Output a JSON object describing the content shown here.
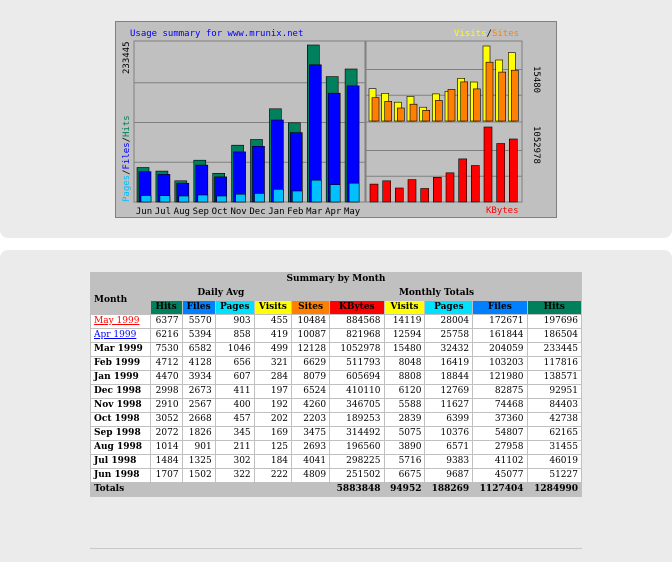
{
  "graph": {
    "title": "Usage summary for www.mrunix.net",
    "legend_right": {
      "visits": "Visits",
      "slash": "/",
      "sites": "Sites"
    },
    "legend_left": {
      "pages": "Pages",
      "slash1": "/",
      "files": "Files",
      "slash2": "/",
      "hits": "Hits"
    },
    "kbytes_label": "KBytes",
    "max_hits_label": "233445",
    "max_visits_label": "15480",
    "max_kbytes_label": "1052978",
    "months": [
      "Jun",
      "Jul",
      "Aug",
      "Sep",
      "Oct",
      "Nov",
      "Dec",
      "Jan",
      "Feb",
      "Mar",
      "Apr",
      "May"
    ],
    "colors": {
      "hits": "#00805c",
      "files": "#0000ff",
      "pages": "#00c0ff",
      "visits": "#ffff00",
      "sites": "#ff8000",
      "kbytes": "#ff0000"
    }
  },
  "chart_data": {
    "type": "bar",
    "categories": [
      "Jun",
      "Jul",
      "Aug",
      "Sep",
      "Oct",
      "Nov",
      "Dec",
      "Jan",
      "Feb",
      "Mar",
      "Apr",
      "May"
    ],
    "series": [
      {
        "name": "Hits",
        "values": [
          51227,
          46019,
          31455,
          62165,
          42738,
          84403,
          92951,
          138571,
          117816,
          233445,
          186504,
          197696
        ]
      },
      {
        "name": "Files",
        "values": [
          45077,
          41102,
          27958,
          54807,
          37360,
          74468,
          82875,
          121980,
          103203,
          204059,
          161844,
          172671
        ]
      },
      {
        "name": "Pages",
        "values": [
          9687,
          9383,
          6571,
          10376,
          6399,
          11627,
          12769,
          18844,
          16419,
          32432,
          25758,
          28004
        ]
      },
      {
        "name": "Visits",
        "values": [
          6675,
          5716,
          3890,
          5075,
          2839,
          5588,
          6120,
          8808,
          8048,
          15480,
          12594,
          14119
        ]
      },
      {
        "name": "Sites",
        "values": [
          4809,
          4041,
          2693,
          3475,
          2203,
          4260,
          6524,
          8079,
          6629,
          12128,
          10087,
          10484
        ]
      },
      {
        "name": "KBytes",
        "values": [
          251502,
          298225,
          196560,
          314492,
          189253,
          346705,
          410110,
          605694,
          511793,
          1052978,
          821968,
          884568
        ]
      }
    ]
  },
  "table": {
    "caption": "Summary by Month",
    "month_header": "Month",
    "daily_avg_header": "Daily Avg",
    "monthly_totals_header": "Monthly Totals",
    "columns": {
      "d_hits": "Hits",
      "d_files": "Files",
      "d_pages": "Pages",
      "d_visits": "Visits",
      "m_sites": "Sites",
      "m_kbytes": "KBytes",
      "m_visits": "Visits",
      "m_pages": "Pages",
      "m_files": "Files",
      "m_hits": "Hits"
    },
    "rows": [
      {
        "month": "May 1999",
        "link": true,
        "current": true,
        "d_hits": "6377",
        "d_files": "5570",
        "d_pages": "903",
        "d_visits": "455",
        "m_sites": "10484",
        "m_kbytes": "884568",
        "m_visits": "14119",
        "m_pages": "28004",
        "m_files": "172671",
        "m_hits": "197696"
      },
      {
        "month": "Apr 1999",
        "link": true,
        "current": false,
        "d_hits": "6216",
        "d_files": "5394",
        "d_pages": "858",
        "d_visits": "419",
        "m_sites": "10087",
        "m_kbytes": "821968",
        "m_visits": "12594",
        "m_pages": "25758",
        "m_files": "161844",
        "m_hits": "186504"
      },
      {
        "month": "Mar 1999",
        "link": false,
        "d_hits": "7530",
        "d_files": "6582",
        "d_pages": "1046",
        "d_visits": "499",
        "m_sites": "12128",
        "m_kbytes": "1052978",
        "m_visits": "15480",
        "m_pages": "32432",
        "m_files": "204059",
        "m_hits": "233445"
      },
      {
        "month": "Feb 1999",
        "link": false,
        "d_hits": "4712",
        "d_files": "4128",
        "d_pages": "656",
        "d_visits": "321",
        "m_sites": "6629",
        "m_kbytes": "511793",
        "m_visits": "8048",
        "m_pages": "16419",
        "m_files": "103203",
        "m_hits": "117816"
      },
      {
        "month": "Jan 1999",
        "link": false,
        "d_hits": "4470",
        "d_files": "3934",
        "d_pages": "607",
        "d_visits": "284",
        "m_sites": "8079",
        "m_kbytes": "605694",
        "m_visits": "8808",
        "m_pages": "18844",
        "m_files": "121980",
        "m_hits": "138571"
      },
      {
        "month": "Dec 1998",
        "link": false,
        "d_hits": "2998",
        "d_files": "2673",
        "d_pages": "411",
        "d_visits": "197",
        "m_sites": "6524",
        "m_kbytes": "410110",
        "m_visits": "6120",
        "m_pages": "12769",
        "m_files": "82875",
        "m_hits": "92951"
      },
      {
        "month": "Nov 1998",
        "link": false,
        "d_hits": "2910",
        "d_files": "2567",
        "d_pages": "400",
        "d_visits": "192",
        "m_sites": "4260",
        "m_kbytes": "346705",
        "m_visits": "5588",
        "m_pages": "11627",
        "m_files": "74468",
        "m_hits": "84403"
      },
      {
        "month": "Oct 1998",
        "link": false,
        "d_hits": "3052",
        "d_files": "2668",
        "d_pages": "457",
        "d_visits": "202",
        "m_sites": "2203",
        "m_kbytes": "189253",
        "m_visits": "2839",
        "m_pages": "6399",
        "m_files": "37360",
        "m_hits": "42738"
      },
      {
        "month": "Sep 1998",
        "link": false,
        "d_hits": "2072",
        "d_files": "1826",
        "d_pages": "345",
        "d_visits": "169",
        "m_sites": "3475",
        "m_kbytes": "314492",
        "m_visits": "5075",
        "m_pages": "10376",
        "m_files": "54807",
        "m_hits": "62165"
      },
      {
        "month": "Aug 1998",
        "link": false,
        "d_hits": "1014",
        "d_files": "901",
        "d_pages": "211",
        "d_visits": "125",
        "m_sites": "2693",
        "m_kbytes": "196560",
        "m_visits": "3890",
        "m_pages": "6571",
        "m_files": "27958",
        "m_hits": "31455"
      },
      {
        "month": "Jul 1998",
        "link": false,
        "d_hits": "1484",
        "d_files": "1325",
        "d_pages": "302",
        "d_visits": "184",
        "m_sites": "4041",
        "m_kbytes": "298225",
        "m_visits": "5716",
        "m_pages": "9383",
        "m_files": "41102",
        "m_hits": "46019"
      },
      {
        "month": "Jun 1998",
        "link": false,
        "d_hits": "1707",
        "d_files": "1502",
        "d_pages": "322",
        "d_visits": "222",
        "m_sites": "4809",
        "m_kbytes": "251502",
        "m_visits": "6675",
        "m_pages": "9687",
        "m_files": "45077",
        "m_hits": "51227"
      }
    ],
    "totals": {
      "label": "Totals",
      "m_kbytes": "5883848",
      "m_visits": "94952",
      "m_pages": "188269",
      "m_files": "1127404",
      "m_hits": "1284990"
    },
    "header_colors": {
      "hits": "#00805c",
      "files": "#0080ff",
      "pages": "#00e0ff",
      "visits": "#ffff00",
      "sites": "#ff8000",
      "kbytes": "#ff0000"
    }
  }
}
